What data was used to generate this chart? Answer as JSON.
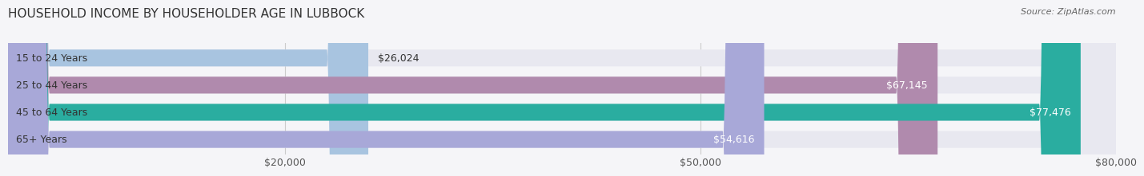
{
  "title": "HOUSEHOLD INCOME BY HOUSEHOLDER AGE IN LUBBOCK",
  "source": "Source: ZipAtlas.com",
  "categories": [
    "15 to 24 Years",
    "25 to 44 Years",
    "45 to 64 Years",
    "65+ Years"
  ],
  "values": [
    26024,
    67145,
    77476,
    54616
  ],
  "labels": [
    "$26,024",
    "$67,145",
    "$77,476",
    "$54,616"
  ],
  "bar_colors": [
    "#a8c4e0",
    "#b08aad",
    "#2aada0",
    "#a8a8d8"
  ],
  "bar_bg_color": "#e8e8f0",
  "xlim": [
    0,
    80000
  ],
  "xticks": [
    20000,
    50000,
    80000
  ],
  "xticklabels": [
    "$20,000",
    "$50,000",
    "$80,000"
  ],
  "title_fontsize": 11,
  "source_fontsize": 8,
  "label_fontsize": 9,
  "tick_fontsize": 9,
  "background_color": "#f5f5f8",
  "bar_height": 0.62,
  "rounding_size": 3000
}
